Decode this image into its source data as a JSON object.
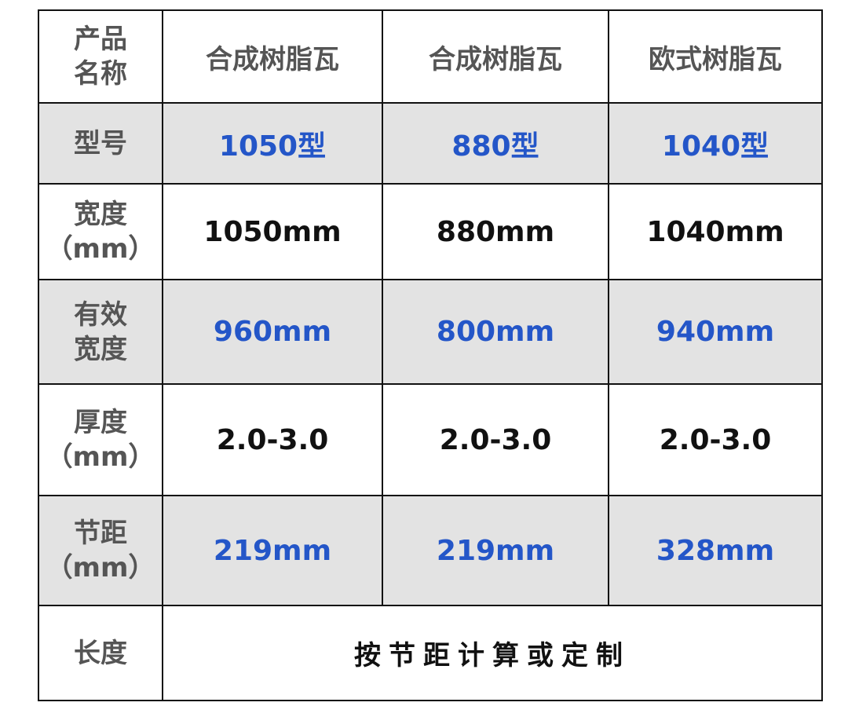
{
  "header": {
    "label": "产品\n名称",
    "columns": [
      "合成树脂瓦",
      "合成树脂瓦",
      "欧式树脂瓦"
    ]
  },
  "rows": [
    {
      "label": "型号",
      "values": [
        "1050型",
        "880型",
        "1040型"
      ],
      "style": "blue",
      "shaded": true
    },
    {
      "label": "宽度\n（mm）",
      "values": [
        "1050mm",
        "880mm",
        "1040mm"
      ],
      "style": "black",
      "shaded": false
    },
    {
      "label": "有效\n宽度",
      "values": [
        "960mm",
        "800mm",
        "940mm"
      ],
      "style": "blue",
      "shaded": true
    },
    {
      "label": "厚度\n（mm）",
      "values": [
        "2.0-3.0",
        "2.0-3.0",
        "2.0-3.0"
      ],
      "style": "black",
      "shaded": false
    },
    {
      "label": "节距\n（mm）",
      "values": [
        "219mm",
        "219mm",
        "328mm"
      ],
      "style": "blue",
      "shaded": true
    }
  ],
  "length_row": {
    "label": "长度",
    "value": "按节距计算或定制"
  },
  "colors": {
    "blue": "#2456c8",
    "label_gray": "#555555",
    "shade": "#e3e3e3"
  }
}
